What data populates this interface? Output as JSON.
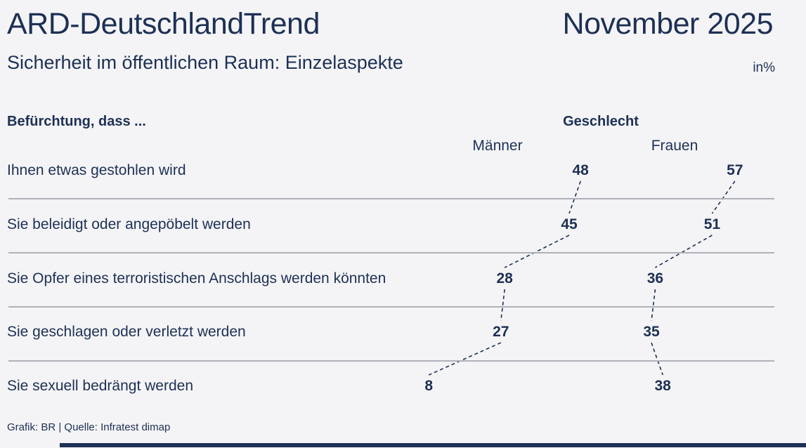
{
  "header": {
    "title": "ARD-DeutschlandTrend",
    "edition": "November 2025",
    "subtitle": "Sicherheit im öffentlichen Raum: Einzelaspekte",
    "unit_label": "in%"
  },
  "table_header": {
    "row_question": "Befürchtung, dass ...",
    "group_label": "Geschlecht"
  },
  "chart_data": {
    "type": "table",
    "title": "Sicherheit im öffentlichen Raum: Einzelaspekte",
    "subtitle_group": "Geschlecht",
    "unit": "percent",
    "categories": [
      "Ihnen etwas gestohlen wird",
      "Sie beleidigt oder angepöbelt werden",
      "Sie Opfer eines terroristischen Anschlags werden könnten",
      "Sie geschlagen oder verletzt werden",
      "Sie sexuell bedrängt werden"
    ],
    "series": [
      {
        "name": "Männer",
        "values": [
          48,
          45,
          28,
          27,
          8
        ]
      },
      {
        "name": "Frauen",
        "values": [
          57,
          51,
          36,
          35,
          38
        ]
      }
    ],
    "layout_hints": {
      "value_positioning": "horizontal offset proportional to value, dashed connectors link consecutive rows per series",
      "grid": "horizontal separators between rows",
      "legend_position": "column headers above first row"
    }
  },
  "footer": {
    "credit": "Grafik: BR | Quelle: Infratest dimap"
  },
  "colors": {
    "navy": "#1d3055",
    "background": "#f4f4f6",
    "separator": "#aeb1b9",
    "bottom_bar": "#1d3055"
  }
}
